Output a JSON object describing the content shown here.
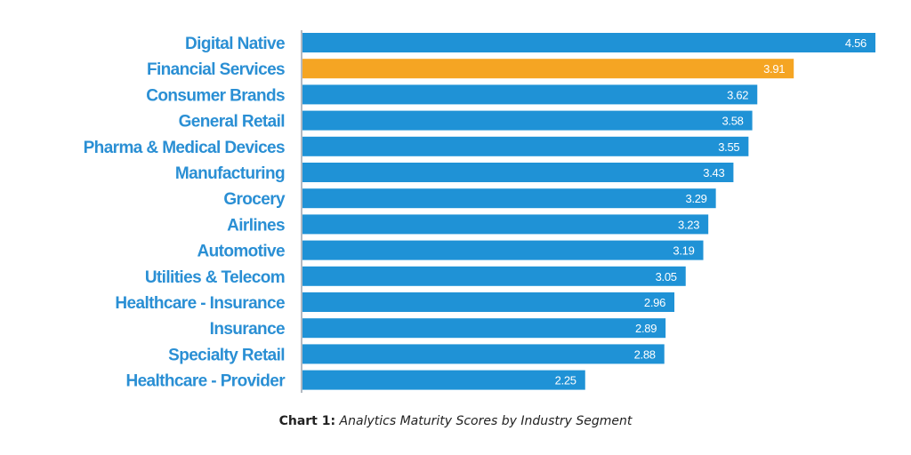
{
  "chart_data": {
    "type": "bar",
    "orientation": "horizontal",
    "categories": [
      "Digital Native",
      "Financial Services",
      "Consumer Brands",
      "General Retail",
      "Pharma &  Medical Devices",
      "Manufacturing",
      "Grocery",
      "Airlines",
      "Automotive",
      "Utilities & Telecom",
      "Healthcare - Insurance",
      "Insurance",
      "Specialty Retail",
      "Healthcare - Provider"
    ],
    "values": [
      4.56,
      3.91,
      3.62,
      3.58,
      3.55,
      3.43,
      3.29,
      3.23,
      3.19,
      3.05,
      2.96,
      2.89,
      2.88,
      2.25
    ],
    "value_labels": [
      "4.56",
      "3.91",
      "3.62",
      "3.58",
      "3.55",
      "3.43",
      "3.29",
      "3.23",
      "3.19",
      "3.05",
      "2.96",
      "2.89",
      "2.88",
      "2.25"
    ],
    "highlight_index": 1,
    "colors": {
      "bar": "#1f92d6",
      "highlight": "#f5a523",
      "axis": "#9aa4ad",
      "label": "#2a8fd4"
    },
    "xlim": [
      0,
      4.56
    ],
    "grid": false,
    "legend": "none"
  },
  "caption": {
    "prefix": "Chart 1:",
    "text": "Analytics Maturity Scores by Industry Segment"
  }
}
